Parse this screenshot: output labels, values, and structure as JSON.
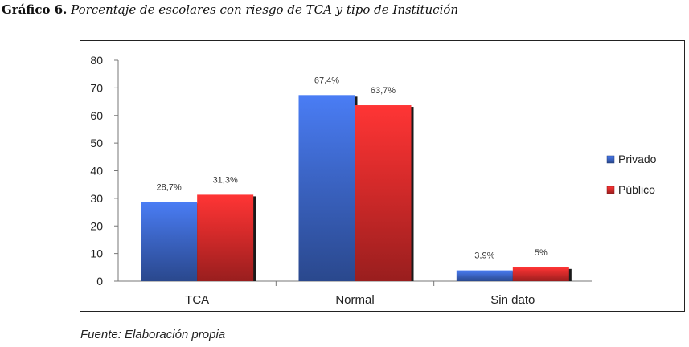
{
  "caption": {
    "number": "Gráfico 6.",
    "text": "Porcentaje de escolares con riesgo de TCA y tipo de Institución"
  },
  "source": "Fuente: Elaboración propia",
  "chart_data": {
    "type": "bar",
    "title": "",
    "xlabel": "",
    "ylabel": "",
    "categories": [
      "TCA",
      "Normal",
      "Sin dato"
    ],
    "ylim": [
      0,
      80
    ],
    "yticks": [
      0,
      10,
      20,
      30,
      40,
      50,
      60,
      70,
      80
    ],
    "grid": false,
    "legend_position": "right",
    "series": [
      {
        "name": "Privado",
        "values": [
          28.7,
          67.4,
          3.9
        ],
        "labels": [
          "28,7%",
          "67,4%",
          "3,9%"
        ],
        "color": "#3b64c4"
      },
      {
        "name": "Público",
        "values": [
          31.3,
          63.7,
          5
        ],
        "labels": [
          "31,3%",
          "63,7%",
          "5%"
        ],
        "color": "#d42a2a"
      }
    ]
  }
}
